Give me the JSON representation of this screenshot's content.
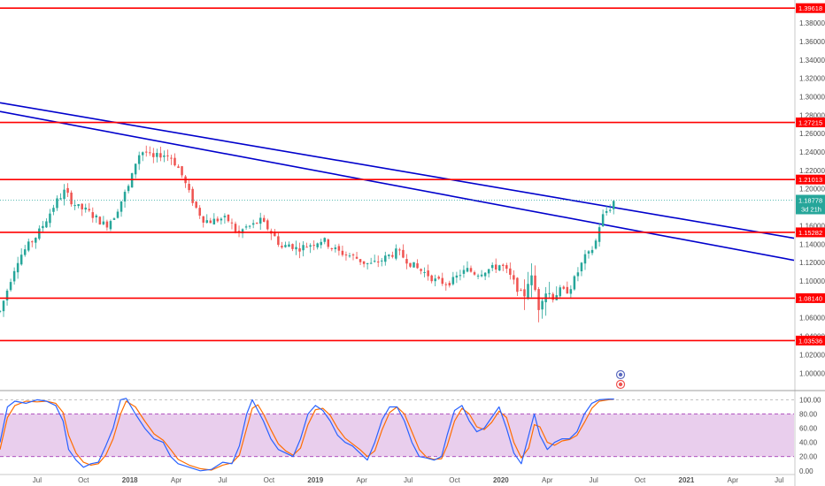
{
  "colors": {
    "up": "#26a69a",
    "down": "#ef5350",
    "resistance": "#ff0000",
    "trendline": "#0000cc",
    "current_price": "#26a69a",
    "stoch_k": "#2962ff",
    "stoch_d": "#ff6d00",
    "stoch_band": "#e1bee7"
  },
  "icons": {
    "indicator_marker": "dividend-earnings-icon"
  },
  "chart_data": [
    {
      "type": "candlestick",
      "price_axis": {
        "range": [
          0.983,
          1.405
        ],
        "ticks": [
          "1.00000",
          "1.02000",
          "1.04000",
          "1.06000",
          "1.08000",
          "1.10000",
          "1.12000",
          "1.14000",
          "1.16000",
          "1.18000",
          "1.20000",
          "1.22000",
          "1.24000",
          "1.26000",
          "1.28000",
          "1.30000",
          "1.32000",
          "1.34000",
          "1.36000",
          "1.38000"
        ]
      },
      "time_axis": {
        "range": [
          2017.3,
          2021.58
        ],
        "labels": [
          {
            "t": 2017.5,
            "text": "Jul",
            "bold": false
          },
          {
            "t": 2017.75,
            "text": "Oct",
            "bold": false
          },
          {
            "t": 2018.0,
            "text": "2018",
            "bold": true
          },
          {
            "t": 2018.25,
            "text": "Apr",
            "bold": false
          },
          {
            "t": 2018.5,
            "text": "Jul",
            "bold": false
          },
          {
            "t": 2018.75,
            "text": "Oct",
            "bold": false
          },
          {
            "t": 2019.0,
            "text": "2019",
            "bold": true
          },
          {
            "t": 2019.25,
            "text": "Apr",
            "bold": false
          },
          {
            "t": 2019.5,
            "text": "Jul",
            "bold": false
          },
          {
            "t": 2019.75,
            "text": "Oct",
            "bold": false
          },
          {
            "t": 2020.0,
            "text": "2020",
            "bold": true
          },
          {
            "t": 2020.25,
            "text": "Apr",
            "bold": false
          },
          {
            "t": 2020.5,
            "text": "Jul",
            "bold": false
          },
          {
            "t": 2020.75,
            "text": "Oct",
            "bold": false
          },
          {
            "t": 2021.0,
            "text": "2021",
            "bold": true
          },
          {
            "t": 2021.25,
            "text": "Apr",
            "bold": false
          },
          {
            "t": 2021.5,
            "text": "Jul",
            "bold": false
          }
        ]
      },
      "horizontal_levels": [
        "1.39618",
        "1.27215",
        "1.21013",
        "1.15282",
        "1.08140",
        "1.03536"
      ],
      "trendlines": [
        {
          "t1": 2017.3,
          "p1": 1.2935,
          "t2": 2021.58,
          "p2": 1.1465
        },
        {
          "t1": 2017.3,
          "p1": 1.284,
          "t2": 2021.58,
          "p2": 1.1225
        }
      ],
      "current_price": {
        "value": "1.18778",
        "countdown": "3d 21h"
      },
      "path": [
        [
          2017.3,
          1.067
        ],
        [
          2017.33,
          1.085
        ],
        [
          2017.37,
          1.11
        ],
        [
          2017.4,
          1.125
        ],
        [
          2017.45,
          1.138
        ],
        [
          2017.5,
          1.15
        ],
        [
          2017.55,
          1.167
        ],
        [
          2017.6,
          1.185
        ],
        [
          2017.65,
          1.198
        ],
        [
          2017.68,
          1.188
        ],
        [
          2017.72,
          1.18
        ],
        [
          2017.77,
          1.176
        ],
        [
          2017.82,
          1.168
        ],
        [
          2017.87,
          1.16
        ],
        [
          2017.92,
          1.172
        ],
        [
          2017.96,
          1.19
        ],
        [
          2018.0,
          1.205
        ],
        [
          2018.04,
          1.236
        ],
        [
          2018.08,
          1.242
        ],
        [
          2018.12,
          1.232
        ],
        [
          2018.17,
          1.238
        ],
        [
          2018.22,
          1.235
        ],
        [
          2018.27,
          1.22
        ],
        [
          2018.32,
          1.195
        ],
        [
          2018.36,
          1.178
        ],
        [
          2018.4,
          1.166
        ],
        [
          2018.44,
          1.165
        ],
        [
          2018.5,
          1.168
        ],
        [
          2018.54,
          1.165
        ],
        [
          2018.58,
          1.15
        ],
        [
          2018.62,
          1.158
        ],
        [
          2018.66,
          1.16
        ],
        [
          2018.7,
          1.166
        ],
        [
          2018.74,
          1.158
        ],
        [
          2018.78,
          1.148
        ],
        [
          2018.82,
          1.136
        ],
        [
          2018.86,
          1.14
        ],
        [
          2018.9,
          1.135
        ],
        [
          2018.95,
          1.138
        ],
        [
          2019.0,
          1.142
        ],
        [
          2019.04,
          1.145
        ],
        [
          2019.08,
          1.138
        ],
        [
          2019.12,
          1.132
        ],
        [
          2019.18,
          1.128
        ],
        [
          2019.22,
          1.125
        ],
        [
          2019.26,
          1.12
        ],
        [
          2019.3,
          1.118
        ],
        [
          2019.35,
          1.122
        ],
        [
          2019.4,
          1.128
        ],
        [
          2019.44,
          1.132
        ],
        [
          2019.48,
          1.125
        ],
        [
          2019.52,
          1.118
        ],
        [
          2019.56,
          1.112
        ],
        [
          2019.6,
          1.108
        ],
        [
          2019.65,
          1.1
        ],
        [
          2019.7,
          1.098
        ],
        [
          2019.74,
          1.1
        ],
        [
          2019.78,
          1.108
        ],
        [
          2019.82,
          1.112
        ],
        [
          2019.87,
          1.108
        ],
        [
          2019.92,
          1.112
        ],
        [
          2019.96,
          1.114
        ],
        [
          2020.0,
          1.118
        ],
        [
          2020.04,
          1.108
        ],
        [
          2020.08,
          1.095
        ],
        [
          2020.12,
          1.082
        ],
        [
          2020.15,
          1.105
        ],
        [
          2020.18,
          1.095
        ],
        [
          2020.2,
          1.072
        ],
        [
          2020.23,
          1.092
        ],
        [
          2020.27,
          1.085
        ],
        [
          2020.31,
          1.09
        ],
        [
          2020.35,
          1.088
        ],
        [
          2020.38,
          1.095
        ],
        [
          2020.42,
          1.112
        ],
        [
          2020.45,
          1.125
        ],
        [
          2020.48,
          1.13
        ],
        [
          2020.51,
          1.142
        ],
        [
          2020.54,
          1.168
        ],
        [
          2020.57,
          1.176
        ],
        [
          2020.59,
          1.18
        ],
        [
          2020.61,
          1.1875
        ]
      ],
      "stochastic": {
        "range": [
          -4,
          108
        ],
        "ticks": [
          "0.00",
          "20.00",
          "40.00",
          "60.00",
          "80.00",
          "100.00"
        ],
        "band": [
          20,
          80
        ],
        "k_path": [
          [
            2017.3,
            40
          ],
          [
            2017.34,
            90
          ],
          [
            2017.38,
            98
          ],
          [
            2017.44,
            95
          ],
          [
            2017.5,
            100
          ],
          [
            2017.55,
            98
          ],
          [
            2017.6,
            92
          ],
          [
            2017.64,
            70
          ],
          [
            2017.67,
            30
          ],
          [
            2017.71,
            15
          ],
          [
            2017.75,
            5
          ],
          [
            2017.79,
            10
          ],
          [
            2017.83,
            12
          ],
          [
            2017.87,
            35
          ],
          [
            2017.91,
            60
          ],
          [
            2017.95,
            100
          ],
          [
            2017.98,
            102
          ],
          [
            2018.03,
            80
          ],
          [
            2018.08,
            60
          ],
          [
            2018.13,
            45
          ],
          [
            2018.18,
            40
          ],
          [
            2018.22,
            20
          ],
          [
            2018.26,
            10
          ],
          [
            2018.32,
            5
          ],
          [
            2018.38,
            0
          ],
          [
            2018.44,
            2
          ],
          [
            2018.5,
            12
          ],
          [
            2018.55,
            10
          ],
          [
            2018.59,
            35
          ],
          [
            2018.63,
            80
          ],
          [
            2018.66,
            100
          ],
          [
            2018.69,
            85
          ],
          [
            2018.72,
            70
          ],
          [
            2018.76,
            45
          ],
          [
            2018.8,
            30
          ],
          [
            2018.84,
            25
          ],
          [
            2018.88,
            20
          ],
          [
            2018.92,
            45
          ],
          [
            2018.96,
            80
          ],
          [
            2019.0,
            92
          ],
          [
            2019.04,
            85
          ],
          [
            2019.08,
            70
          ],
          [
            2019.12,
            50
          ],
          [
            2019.16,
            40
          ],
          [
            2019.2,
            35
          ],
          [
            2019.24,
            25
          ],
          [
            2019.28,
            15
          ],
          [
            2019.32,
            40
          ],
          [
            2019.36,
            72
          ],
          [
            2019.4,
            90
          ],
          [
            2019.44,
            90
          ],
          [
            2019.48,
            70
          ],
          [
            2019.52,
            40
          ],
          [
            2019.56,
            20
          ],
          [
            2019.6,
            18
          ],
          [
            2019.64,
            15
          ],
          [
            2019.68,
            20
          ],
          [
            2019.71,
            50
          ],
          [
            2019.75,
            85
          ],
          [
            2019.79,
            92
          ],
          [
            2019.83,
            70
          ],
          [
            2019.87,
            55
          ],
          [
            2019.91,
            60
          ],
          [
            2019.95,
            75
          ],
          [
            2019.99,
            90
          ],
          [
            2020.03,
            60
          ],
          [
            2020.07,
            25
          ],
          [
            2020.11,
            10
          ],
          [
            2020.15,
            50
          ],
          [
            2020.18,
            80
          ],
          [
            2020.21,
            50
          ],
          [
            2020.25,
            30
          ],
          [
            2020.29,
            40
          ],
          [
            2020.33,
            45
          ],
          [
            2020.37,
            45
          ],
          [
            2020.41,
            55
          ],
          [
            2020.45,
            80
          ],
          [
            2020.49,
            95
          ],
          [
            2020.53,
            100
          ],
          [
            2020.58,
            101
          ],
          [
            2020.61,
            101
          ]
        ],
        "d_path": [
          [
            2017.3,
            30
          ],
          [
            2017.34,
            75
          ],
          [
            2017.38,
            92
          ],
          [
            2017.44,
            98
          ],
          [
            2017.5,
            97
          ],
          [
            2017.55,
            98
          ],
          [
            2017.6,
            95
          ],
          [
            2017.64,
            82
          ],
          [
            2017.67,
            50
          ],
          [
            2017.71,
            25
          ],
          [
            2017.75,
            12
          ],
          [
            2017.79,
            8
          ],
          [
            2017.83,
            10
          ],
          [
            2017.87,
            22
          ],
          [
            2017.91,
            45
          ],
          [
            2017.95,
            80
          ],
          [
            2017.98,
            98
          ],
          [
            2018.03,
            90
          ],
          [
            2018.08,
            70
          ],
          [
            2018.13,
            52
          ],
          [
            2018.18,
            43
          ],
          [
            2018.22,
            30
          ],
          [
            2018.26,
            16
          ],
          [
            2018.32,
            8
          ],
          [
            2018.38,
            3
          ],
          [
            2018.44,
            1
          ],
          [
            2018.5,
            8
          ],
          [
            2018.55,
            11
          ],
          [
            2018.59,
            22
          ],
          [
            2018.63,
            60
          ],
          [
            2018.66,
            88
          ],
          [
            2018.69,
            93
          ],
          [
            2018.72,
            80
          ],
          [
            2018.76,
            58
          ],
          [
            2018.8,
            38
          ],
          [
            2018.84,
            28
          ],
          [
            2018.88,
            22
          ],
          [
            2018.92,
            32
          ],
          [
            2018.96,
            65
          ],
          [
            2019.0,
            86
          ],
          [
            2019.04,
            88
          ],
          [
            2019.08,
            78
          ],
          [
            2019.12,
            60
          ],
          [
            2019.16,
            46
          ],
          [
            2019.2,
            38
          ],
          [
            2019.24,
            30
          ],
          [
            2019.28,
            20
          ],
          [
            2019.32,
            28
          ],
          [
            2019.36,
            58
          ],
          [
            2019.4,
            82
          ],
          [
            2019.44,
            90
          ],
          [
            2019.48,
            80
          ],
          [
            2019.52,
            55
          ],
          [
            2019.56,
            30
          ],
          [
            2019.6,
            19
          ],
          [
            2019.64,
            16
          ],
          [
            2019.68,
            17
          ],
          [
            2019.71,
            35
          ],
          [
            2019.75,
            70
          ],
          [
            2019.79,
            88
          ],
          [
            2019.83,
            80
          ],
          [
            2019.87,
            62
          ],
          [
            2019.91,
            58
          ],
          [
            2019.95,
            68
          ],
          [
            2019.99,
            84
          ],
          [
            2020.03,
            75
          ],
          [
            2020.07,
            40
          ],
          [
            2020.11,
            18
          ],
          [
            2020.15,
            32
          ],
          [
            2020.18,
            65
          ],
          [
            2020.21,
            62
          ],
          [
            2020.25,
            40
          ],
          [
            2020.29,
            36
          ],
          [
            2020.33,
            42
          ],
          [
            2020.37,
            44
          ],
          [
            2020.41,
            50
          ],
          [
            2020.45,
            68
          ],
          [
            2020.49,
            88
          ],
          [
            2020.53,
            98
          ],
          [
            2020.58,
            100
          ],
          [
            2020.61,
            101
          ]
        ]
      }
    }
  ]
}
